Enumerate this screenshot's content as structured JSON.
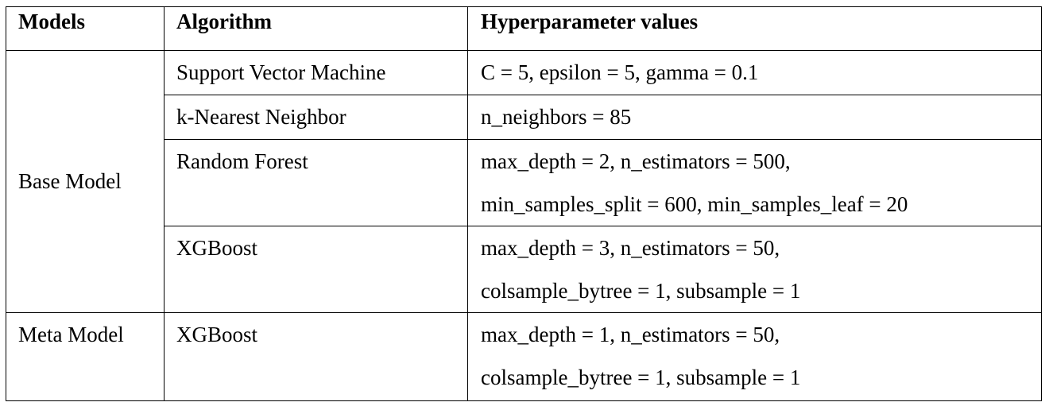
{
  "table": {
    "headers": {
      "models": "Models",
      "algorithm": "Algorithm",
      "hyperparameters": "Hyperparameter values"
    },
    "base_model_label": "Base Model",
    "meta_model_label": "Meta Model",
    "rows": [
      {
        "algorithm": "Support Vector Machine",
        "hyperparameters": [
          "C = 5, epsilon = 5, gamma = 0.1"
        ]
      },
      {
        "algorithm": "k-Nearest Neighbor",
        "hyperparameters": [
          "n_neighbors = 85"
        ]
      },
      {
        "algorithm": "Random Forest",
        "hyperparameters": [
          "max_depth = 2, n_estimators = 500,",
          "min_samples_split = 600, min_samples_leaf = 20"
        ]
      },
      {
        "algorithm": "XGBoost",
        "hyperparameters": [
          "max_depth = 3, n_estimators = 50,",
          "colsample_bytree = 1, subsample = 1"
        ]
      },
      {
        "algorithm": "XGBoost",
        "hyperparameters": [
          "max_depth = 1, n_estimators = 50,",
          "colsample_bytree = 1, subsample = 1"
        ]
      }
    ]
  }
}
